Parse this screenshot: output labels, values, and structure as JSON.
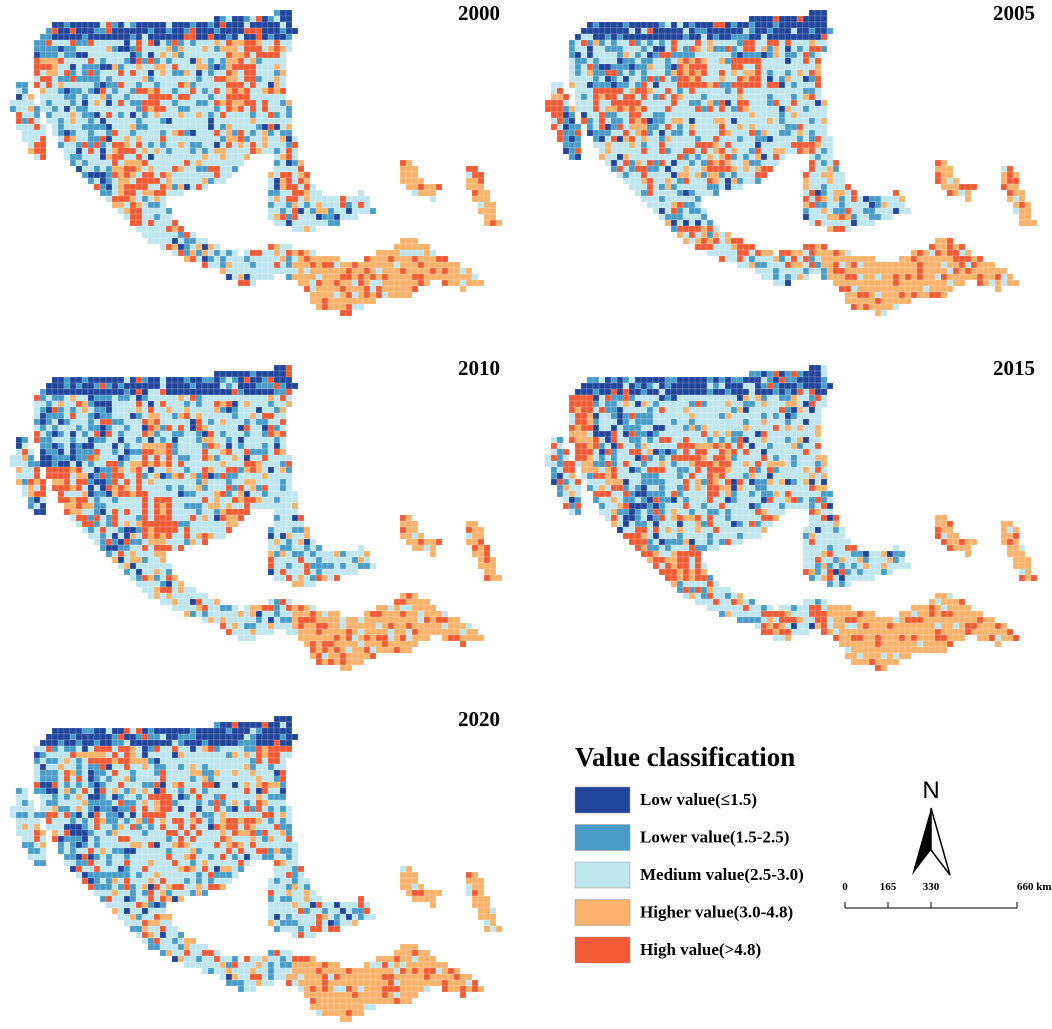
{
  "panels": [
    {
      "year": "2000"
    },
    {
      "year": "2005"
    },
    {
      "year": "2010"
    },
    {
      "year": "2015"
    },
    {
      "year": "2020"
    }
  ],
  "legend": {
    "title": "Value classification",
    "items": [
      {
        "label": "Low value(≤1.5)",
        "color": "#21459a"
      },
      {
        "label": "Lower value(1.5-2.5)",
        "color": "#4a9cc8"
      },
      {
        "label": "Medium value(2.5-3.0)",
        "color": "#bfe6ee"
      },
      {
        "label": "Higher value(3.0-4.8)",
        "color": "#f9b26b"
      },
      {
        "label": "High value(>4.8)",
        "color": "#f25a35"
      }
    ]
  },
  "north_arrow": {
    "label": "N"
  },
  "scale_bar": {
    "lim": [
      0,
      660
    ],
    "ticks": [
      0,
      165,
      330,
      {
        "value": 660,
        "label": "660 km"
      }
    ]
  }
}
